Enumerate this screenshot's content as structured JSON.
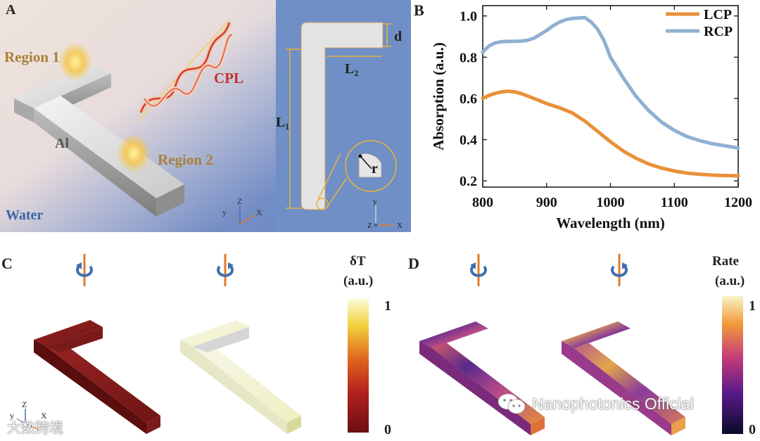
{
  "panels": {
    "a": {
      "letter": "A",
      "region1": "Region 1",
      "region2": "Region 2",
      "cpl": "CPL",
      "al": "Al",
      "water": "Water",
      "axes": {
        "z": "Z",
        "y": "y",
        "x": "X"
      },
      "dims": {
        "d": "d",
        "l2": "L₂",
        "l1": "L₁",
        "r": "r"
      },
      "axes2": {
        "y": "y",
        "z": "Z",
        "x": "X"
      }
    },
    "b": {
      "letter": "B"
    },
    "c": {
      "letter": "C",
      "colorbar_title_1": "δT",
      "colorbar_title_2": "(a.u.)",
      "colorbar_max": "1",
      "colorbar_min": "0",
      "axes": {
        "z": "Z",
        "y": "y",
        "x": "X"
      }
    },
    "d": {
      "letter": "D",
      "colorbar_title_1": "Rate",
      "colorbar_title_2": "(a.u.)",
      "colorbar_max": "1",
      "colorbar_min": "0"
    }
  },
  "watermarks": {
    "left": "大数跨境",
    "right": "Nanophotonics Official"
  },
  "colors": {
    "lcp": "#e8913a",
    "rcp": "#8fb0d2",
    "panel_a_bg": "#e9dcd8",
    "panel_a_blue": "#6f8fc6",
    "accent_gold": "#e8b43a",
    "arrow_orange": "#e07b2a",
    "arrow_blue": "#3f6fb0"
  },
  "chart_data": {
    "type": "line",
    "title": "",
    "xlabel": "Wavelength (nm)",
    "ylabel": "Absorption (a.u.)",
    "xlim": [
      800,
      1200
    ],
    "ylim": [
      0.17,
      1.05
    ],
    "xticks": [
      800,
      900,
      1000,
      1100,
      1200
    ],
    "yticks": [
      0.2,
      0.4,
      0.6,
      0.8,
      1.0
    ],
    "ytick_labels": [
      "0.2",
      "0.4",
      "0.6",
      "0.8",
      "1.0"
    ],
    "legend_position": "top-right",
    "grid": false,
    "series": [
      {
        "name": "LCP",
        "color": "#e8913a",
        "x": [
          800,
          810,
          820,
          830,
          840,
          850,
          860,
          870,
          880,
          890,
          900,
          920,
          940,
          960,
          980,
          1000,
          1020,
          1040,
          1060,
          1080,
          1100,
          1120,
          1140,
          1160,
          1180,
          1200
        ],
        "y": [
          0.6,
          0.615,
          0.625,
          0.632,
          0.635,
          0.632,
          0.624,
          0.612,
          0.6,
          0.588,
          0.575,
          0.555,
          0.53,
          0.49,
          0.44,
          0.39,
          0.345,
          0.31,
          0.282,
          0.262,
          0.248,
          0.238,
          0.232,
          0.228,
          0.226,
          0.225
        ]
      },
      {
        "name": "RCP",
        "color": "#8fb0d2",
        "x": [
          800,
          810,
          820,
          830,
          840,
          850,
          860,
          870,
          880,
          890,
          900,
          910,
          920,
          930,
          940,
          950,
          960,
          970,
          980,
          990,
          1000,
          1020,
          1040,
          1060,
          1080,
          1100,
          1120,
          1140,
          1160,
          1180,
          1200
        ],
        "y": [
          0.825,
          0.855,
          0.87,
          0.875,
          0.877,
          0.877,
          0.878,
          0.882,
          0.892,
          0.91,
          0.93,
          0.952,
          0.97,
          0.982,
          0.988,
          0.99,
          0.992,
          0.97,
          0.935,
          0.88,
          0.8,
          0.7,
          0.61,
          0.54,
          0.485,
          0.445,
          0.415,
          0.395,
          0.38,
          0.37,
          0.36
        ]
      }
    ]
  }
}
